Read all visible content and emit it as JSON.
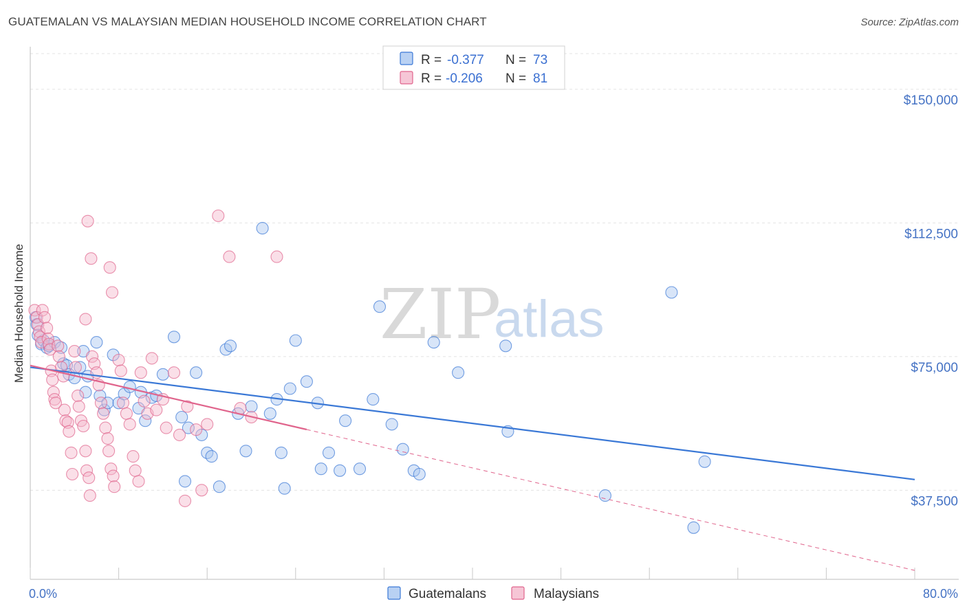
{
  "header": {
    "title": "GUATEMALAN VS MALAYSIAN MEDIAN HOUSEHOLD INCOME CORRELATION CHART",
    "source": "Source: ZipAtlas.com"
  },
  "watermark": {
    "zip": "ZIP",
    "atlas": "atlas"
  },
  "legend": {
    "r_label": "R =",
    "n_label": "N =",
    "rows": [
      {
        "r": "-0.377",
        "n": "73",
        "color": "#a8c6f0"
      },
      {
        "r": "-0.206",
        "n": "81",
        "color": "#f4b8cc"
      }
    ]
  },
  "bottom_legend": [
    {
      "label": "Guatemalans",
      "color": "#a8c6f0"
    },
    {
      "label": "Malaysians",
      "color": "#f4b8cc"
    }
  ],
  "chart_data": {
    "type": "scatter",
    "ylabel": "Median Household Income",
    "xlim": [
      0,
      80
    ],
    "ylim": [
      12500,
      160000
    ],
    "x_tick_labels": [
      "0.0%",
      "80.0%"
    ],
    "y_ticks": [
      {
        "value": 37500,
        "label": "$37,500"
      },
      {
        "value": 75000,
        "label": "$75,000"
      },
      {
        "value": 112500,
        "label": "$112,500"
      },
      {
        "value": 150000,
        "label": "$150,000"
      }
    ],
    "grid": true,
    "series": [
      {
        "name": "Guatemalans",
        "color": "#3a78d6",
        "fill": "#a8c6f0",
        "trend": {
          "x0": 0,
          "y0": 72000,
          "x1": 80,
          "y1": 40500,
          "dashed_from": null
        },
        "points": [
          [
            0.5,
            86000
          ],
          [
            0.6,
            84000
          ],
          [
            0.7,
            81000
          ],
          [
            1.0,
            78500
          ],
          [
            1.2,
            79500
          ],
          [
            1.5,
            77500
          ],
          [
            1.7,
            78000
          ],
          [
            2.2,
            79000
          ],
          [
            2.8,
            77500
          ],
          [
            3.0,
            73000
          ],
          [
            3.3,
            72500
          ],
          [
            3.5,
            70000
          ],
          [
            4.0,
            69000
          ],
          [
            4.5,
            72000
          ],
          [
            4.8,
            76500
          ],
          [
            5.0,
            65000
          ],
          [
            5.2,
            69500
          ],
          [
            6.0,
            79000
          ],
          [
            6.3,
            64000
          ],
          [
            6.7,
            60000
          ],
          [
            7.0,
            62000
          ],
          [
            7.5,
            75500
          ],
          [
            8.0,
            62000
          ],
          [
            8.5,
            64500
          ],
          [
            9.0,
            66500
          ],
          [
            9.8,
            60500
          ],
          [
            10.0,
            65000
          ],
          [
            10.4,
            57000
          ],
          [
            11.0,
            63500
          ],
          [
            11.4,
            64000
          ],
          [
            12.0,
            70000
          ],
          [
            13.0,
            80500
          ],
          [
            13.7,
            58000
          ],
          [
            14.0,
            40000
          ],
          [
            14.3,
            55000
          ],
          [
            15.0,
            70500
          ],
          [
            15.5,
            53000
          ],
          [
            16.0,
            48000
          ],
          [
            16.4,
            47000
          ],
          [
            17.1,
            38500
          ],
          [
            17.7,
            77000
          ],
          [
            18.1,
            78000
          ],
          [
            18.8,
            59000
          ],
          [
            19.5,
            48500
          ],
          [
            20.0,
            61000
          ],
          [
            21.0,
            111000
          ],
          [
            21.7,
            59000
          ],
          [
            22.3,
            63000
          ],
          [
            22.7,
            48000
          ],
          [
            23.0,
            38000
          ],
          [
            23.5,
            66000
          ],
          [
            24.0,
            79500
          ],
          [
            25.0,
            68000
          ],
          [
            26.0,
            62000
          ],
          [
            26.3,
            43500
          ],
          [
            27.0,
            48000
          ],
          [
            28.0,
            43000
          ],
          [
            28.5,
            57000
          ],
          [
            29.8,
            43500
          ],
          [
            31.0,
            63000
          ],
          [
            31.6,
            89000
          ],
          [
            32.7,
            56000
          ],
          [
            33.7,
            49000
          ],
          [
            34.7,
            43000
          ],
          [
            35.2,
            42000
          ],
          [
            36.5,
            79000
          ],
          [
            38.7,
            70500
          ],
          [
            43.0,
            78000
          ],
          [
            43.2,
            54000
          ],
          [
            52.0,
            36000
          ],
          [
            58.0,
            93000
          ],
          [
            60.0,
            27000
          ],
          [
            61.0,
            45500
          ]
        ]
      },
      {
        "name": "Malaysians",
        "color": "#e0648c",
        "fill": "#f4b8cc",
        "trend": {
          "x0": 0,
          "y0": 72500,
          "x1": 80,
          "y1": 15000,
          "dashed_from": 25
        },
        "points": [
          [
            0.4,
            88000
          ],
          [
            0.6,
            86000
          ],
          [
            0.7,
            84000
          ],
          [
            0.8,
            82000
          ],
          [
            0.9,
            80500
          ],
          [
            1.0,
            79000
          ],
          [
            1.1,
            88000
          ],
          [
            1.3,
            86000
          ],
          [
            1.5,
            83000
          ],
          [
            1.6,
            80000
          ],
          [
            1.7,
            78500
          ],
          [
            1.8,
            77000
          ],
          [
            1.9,
            71000
          ],
          [
            2.0,
            68500
          ],
          [
            2.1,
            65000
          ],
          [
            2.2,
            63000
          ],
          [
            2.3,
            62000
          ],
          [
            2.5,
            78000
          ],
          [
            2.6,
            75000
          ],
          [
            2.8,
            72000
          ],
          [
            3.0,
            69500
          ],
          [
            3.1,
            60000
          ],
          [
            3.2,
            57000
          ],
          [
            3.4,
            56500
          ],
          [
            3.5,
            54000
          ],
          [
            3.7,
            48000
          ],
          [
            3.8,
            42000
          ],
          [
            4.0,
            76500
          ],
          [
            4.1,
            72000
          ],
          [
            4.3,
            64000
          ],
          [
            4.4,
            61000
          ],
          [
            4.6,
            57000
          ],
          [
            4.8,
            55500
          ],
          [
            5.0,
            48500
          ],
          [
            5.1,
            43000
          ],
          [
            5.3,
            41000
          ],
          [
            5.4,
            36000
          ],
          [
            5.6,
            75000
          ],
          [
            5.8,
            73000
          ],
          [
            6.0,
            70500
          ],
          [
            6.2,
            67000
          ],
          [
            6.4,
            62000
          ],
          [
            6.6,
            59000
          ],
          [
            6.8,
            55000
          ],
          [
            7.0,
            52000
          ],
          [
            7.1,
            48500
          ],
          [
            7.3,
            43500
          ],
          [
            7.5,
            41500
          ],
          [
            7.6,
            38500
          ],
          [
            8.0,
            74000
          ],
          [
            8.2,
            71000
          ],
          [
            8.4,
            62000
          ],
          [
            8.7,
            59000
          ],
          [
            9.0,
            56000
          ],
          [
            9.3,
            47000
          ],
          [
            9.5,
            43000
          ],
          [
            9.8,
            40000
          ],
          [
            10.0,
            70500
          ],
          [
            10.3,
            62500
          ],
          [
            10.6,
            59000
          ],
          [
            11.0,
            74500
          ],
          [
            11.4,
            60000
          ],
          [
            12.0,
            63000
          ],
          [
            12.3,
            55000
          ],
          [
            13.0,
            70500
          ],
          [
            13.5,
            53000
          ],
          [
            14.0,
            34500
          ],
          [
            14.2,
            61000
          ],
          [
            15.0,
            54500
          ],
          [
            15.5,
            37500
          ],
          [
            16.0,
            56000
          ],
          [
            17.0,
            114500
          ],
          [
            18.0,
            103000
          ],
          [
            19.0,
            60500
          ],
          [
            20.0,
            58000
          ],
          [
            22.3,
            103000
          ],
          [
            5.2,
            113000
          ],
          [
            5.5,
            102500
          ],
          [
            7.2,
            100000
          ],
          [
            7.4,
            93000
          ],
          [
            5.0,
            85500
          ]
        ]
      }
    ]
  }
}
